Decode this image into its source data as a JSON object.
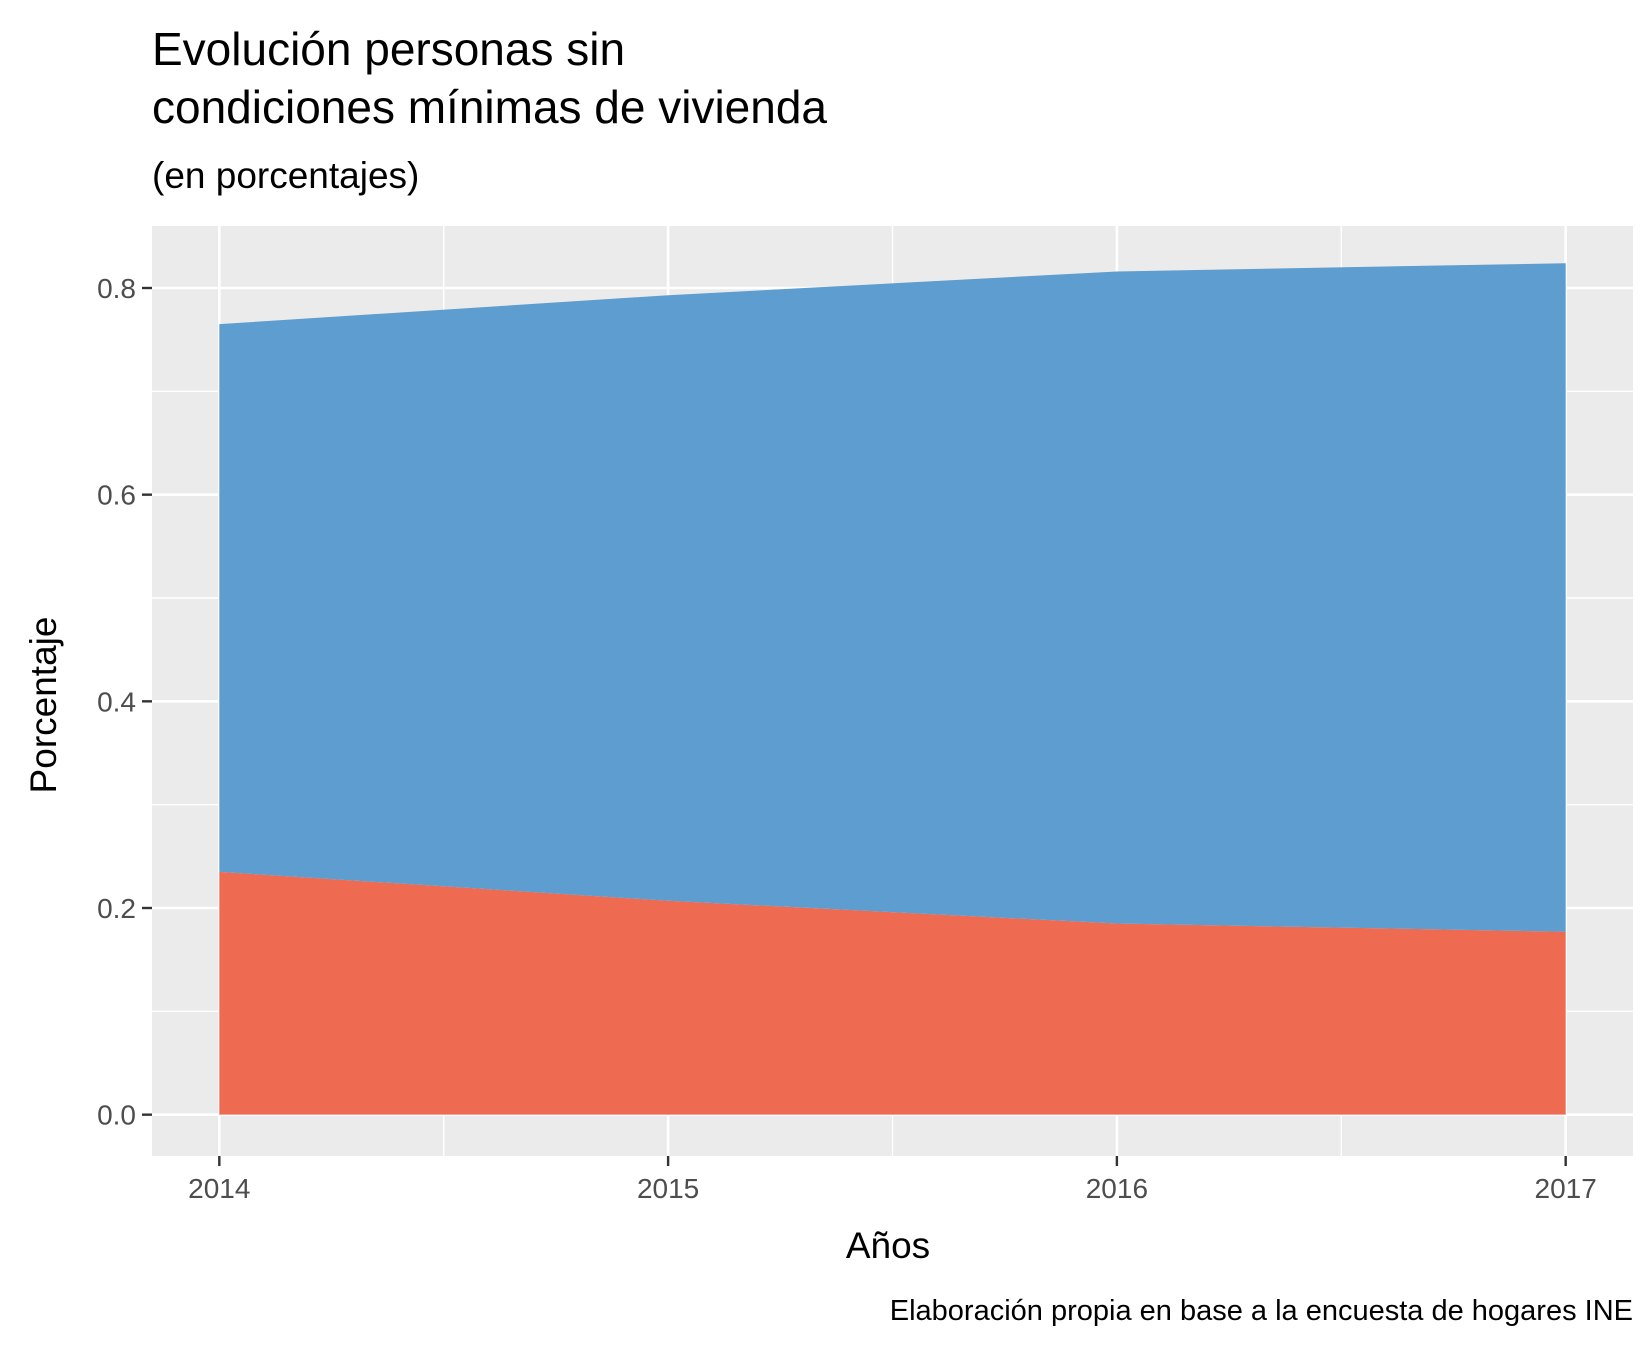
{
  "chart_data": {
    "type": "area",
    "title_lines": [
      "Evolución personas sin",
      "condiciones mínimas de vivienda"
    ],
    "subtitle": "(en porcentajes)",
    "xlabel": "Años",
    "ylabel": "Porcentaje",
    "caption": "Elaboración propia en base a la encuesta de hogares INE",
    "x": [
      2014,
      2015,
      2016,
      2017
    ],
    "x_ticks": [
      "2014",
      "2015",
      "2016",
      "2017"
    ],
    "y_ticks": [
      "0.0",
      "0.2",
      "0.4",
      "0.6",
      "0.8"
    ],
    "ylim": [
      -0.04,
      0.86
    ],
    "xlim": [
      2013.85,
      2017.15
    ],
    "stacked": true,
    "grid": true,
    "legend": "none",
    "series": [
      {
        "values": [
          0.235,
          0.207,
          0.185,
          0.177
        ],
        "color": "#ee6a50"
      },
      {
        "values": [
          0.53,
          0.586,
          0.631,
          0.647
        ],
        "color": "#5e9dcf"
      }
    ],
    "panel_color": "#ebebeb",
    "grid_color": "#ffffff"
  }
}
